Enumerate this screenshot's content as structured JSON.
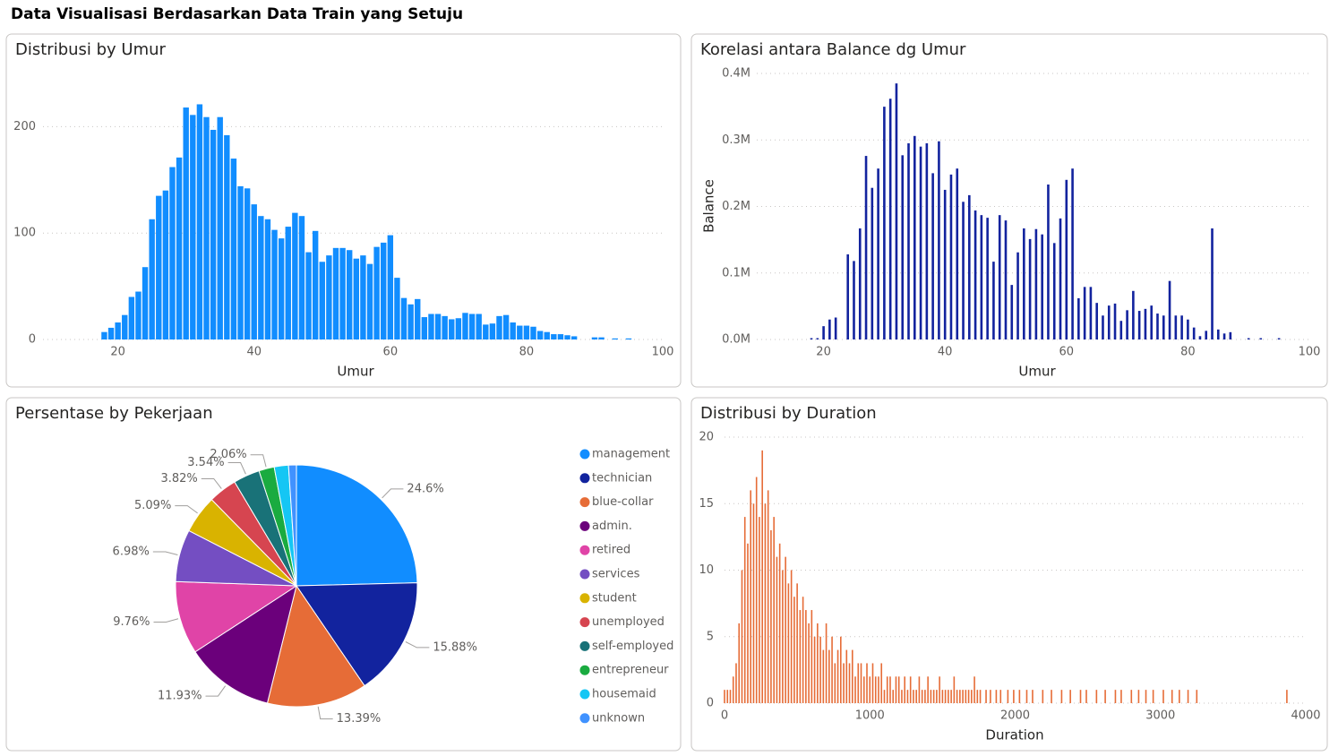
{
  "title": "Data Visualisasi Berdasarkan Data Train yang Setuju",
  "chart_data": [
    {
      "type": "bar",
      "title": "Distribusi by Umur",
      "x_label": "Umur",
      "color": "#118DFF",
      "grid": true,
      "x": [
        18,
        19,
        20,
        21,
        22,
        23,
        24,
        25,
        26,
        27,
        28,
        29,
        30,
        31,
        32,
        33,
        34,
        35,
        36,
        37,
        38,
        39,
        40,
        41,
        42,
        43,
        44,
        45,
        46,
        47,
        48,
        49,
        50,
        51,
        52,
        53,
        54,
        55,
        56,
        57,
        58,
        59,
        60,
        61,
        62,
        63,
        64,
        65,
        66,
        67,
        68,
        69,
        70,
        71,
        72,
        73,
        74,
        75,
        76,
        77,
        78,
        79,
        80,
        81,
        82,
        83,
        84,
        85,
        86,
        87,
        90,
        91,
        93,
        95
      ],
      "values": [
        7,
        11,
        16,
        23,
        40,
        45,
        68,
        113,
        135,
        140,
        162,
        171,
        218,
        211,
        221,
        209,
        197,
        209,
        192,
        170,
        144,
        142,
        127,
        116,
        113,
        103,
        95,
        106,
        119,
        116,
        82,
        102,
        73,
        79,
        86,
        86,
        84,
        76,
        79,
        71,
        87,
        91,
        98,
        58,
        39,
        33,
        38,
        21,
        24,
        24,
        22,
        19,
        20,
        25,
        24,
        24,
        14,
        15,
        22,
        23,
        16,
        13,
        13,
        12,
        8,
        7,
        5,
        5,
        4,
        3,
        2,
        2,
        1,
        1
      ],
      "xlim": [
        9,
        100
      ],
      "xticks": [
        20,
        40,
        60,
        80,
        100
      ],
      "ylim": [
        0,
        250
      ],
      "yticks": [
        0,
        100,
        200
      ]
    },
    {
      "type": "bar",
      "title": "Korelasi antara Balance dg Umur",
      "x_label": "Umur",
      "y_label": "Balance",
      "color": "#12239E",
      "grid": true,
      "x": [
        18,
        19,
        20,
        21,
        22,
        24,
        25,
        26,
        27,
        28,
        29,
        30,
        31,
        32,
        33,
        34,
        35,
        36,
        37,
        38,
        39,
        40,
        41,
        42,
        43,
        44,
        45,
        46,
        47,
        48,
        49,
        50,
        51,
        52,
        53,
        54,
        55,
        56,
        57,
        58,
        59,
        60,
        61,
        62,
        63,
        64,
        65,
        66,
        67,
        68,
        69,
        70,
        71,
        72,
        73,
        74,
        75,
        76,
        77,
        78,
        79,
        80,
        81,
        82,
        83,
        84,
        85,
        86,
        87,
        90,
        92,
        95
      ],
      "values": [
        2000,
        2000,
        20000,
        30000,
        33000,
        128000,
        118000,
        167000,
        276000,
        228000,
        257000,
        350000,
        362000,
        385000,
        277000,
        295000,
        306000,
        290000,
        295000,
        250000,
        298000,
        225000,
        248000,
        257000,
        207000,
        217000,
        194000,
        187000,
        183000,
        117000,
        187000,
        179000,
        82000,
        131000,
        167000,
        151000,
        166000,
        158000,
        233000,
        145000,
        182000,
        240000,
        257000,
        62000,
        79000,
        79000,
        55000,
        36000,
        51000,
        54000,
        28000,
        44000,
        73000,
        43000,
        46000,
        51000,
        39000,
        36000,
        88000,
        36000,
        36000,
        30000,
        18000,
        5000,
        13000,
        167000,
        15000,
        9000,
        11000,
        2000,
        2000,
        2000
      ],
      "xlim": [
        9,
        100
      ],
      "xticks": [
        20,
        40,
        60,
        80,
        100
      ],
      "ylim": [
        0,
        400000
      ],
      "yticks": [
        {
          "value": 0,
          "label": "0.0M"
        },
        {
          "value": 100000,
          "label": "0.1M"
        },
        {
          "value": 200000,
          "label": "0.2M"
        },
        {
          "value": 300000,
          "label": "0.3M"
        },
        {
          "value": 400000,
          "label": "0.4M"
        }
      ]
    },
    {
      "type": "pie",
      "title": "Persentase by Pekerjaan",
      "categories": [
        "management",
        "technician",
        "blue-collar",
        "admin.",
        "retired",
        "services",
        "student",
        "unemployed",
        "self-employed",
        "entrepreneur",
        "housemaid",
        "unknown"
      ],
      "values": [
        24.6,
        15.88,
        13.39,
        11.93,
        9.76,
        6.98,
        5.09,
        3.82,
        3.54,
        2.06,
        1.9,
        1.05
      ],
      "value_labels": [
        "24.6%",
        "15.88%",
        "13.39%",
        "11.93%",
        "9.76%",
        "6.98%",
        "5.09%",
        "3.82%",
        "3.54%",
        "2.06%",
        null,
        null
      ],
      "colors": [
        "#118DFF",
        "#12239E",
        "#E66C37",
        "#6B007B",
        "#E044A7",
        "#744EC2",
        "#D9B300",
        "#D64550",
        "#197278",
        "#1AAB40",
        "#15C6F4",
        "#4092FF"
      ]
    },
    {
      "type": "bar",
      "title": "Distribusi by Duration",
      "x_label": "Duration",
      "color": "#E66C37",
      "grid": true,
      "x": [
        0,
        20,
        40,
        60,
        80,
        100,
        120,
        140,
        160,
        180,
        200,
        220,
        240,
        260,
        280,
        300,
        320,
        340,
        360,
        380,
        400,
        420,
        440,
        460,
        480,
        500,
        520,
        540,
        560,
        580,
        600,
        620,
        640,
        660,
        680,
        700,
        720,
        740,
        760,
        780,
        800,
        820,
        840,
        860,
        880,
        900,
        920,
        940,
        960,
        980,
        1000,
        1020,
        1040,
        1060,
        1080,
        1100,
        1120,
        1140,
        1160,
        1180,
        1200,
        1220,
        1240,
        1260,
        1280,
        1300,
        1320,
        1340,
        1360,
        1380,
        1400,
        1420,
        1440,
        1460,
        1480,
        1500,
        1520,
        1540,
        1560,
        1580,
        1600,
        1620,
        1640,
        1660,
        1680,
        1700,
        1720,
        1740,
        1760,
        1800,
        1830,
        1870,
        1900,
        1950,
        1990,
        2030,
        2080,
        2120,
        2190,
        2250,
        2320,
        2380,
        2450,
        2490,
        2560,
        2620,
        2690,
        2730,
        2800,
        2850,
        2900,
        2950,
        3020,
        3080,
        3130,
        3190,
        3250,
        3870
      ],
      "values": [
        1,
        1,
        1,
        2,
        3,
        6,
        10,
        14,
        12,
        16,
        15,
        17,
        14,
        19,
        15,
        16,
        13,
        14,
        11,
        12,
        10,
        11,
        9,
        10,
        8,
        9,
        7,
        8,
        7,
        6,
        7,
        5,
        6,
        5,
        4,
        6,
        4,
        5,
        3,
        4,
        5,
        3,
        4,
        3,
        4,
        2,
        3,
        3,
        2,
        3,
        2,
        3,
        2,
        2,
        3,
        1,
        2,
        2,
        1,
        2,
        2,
        1,
        2,
        1,
        2,
        1,
        1,
        2,
        1,
        1,
        2,
        1,
        1,
        1,
        2,
        1,
        1,
        1,
        1,
        2,
        1,
        1,
        1,
        1,
        1,
        1,
        2,
        1,
        1,
        1,
        1,
        1,
        1,
        1,
        1,
        1,
        1,
        1,
        1,
        1,
        1,
        1,
        1,
        1,
        1,
        1,
        1,
        1,
        1,
        1,
        1,
        1,
        1,
        1,
        1,
        1,
        1,
        1
      ],
      "xlim": [
        0,
        4000
      ],
      "xticks": [
        0,
        1000,
        2000,
        3000,
        4000
      ],
      "ylim": [
        0,
        20
      ],
      "yticks": [
        0,
        5,
        10,
        15,
        20
      ]
    }
  ]
}
